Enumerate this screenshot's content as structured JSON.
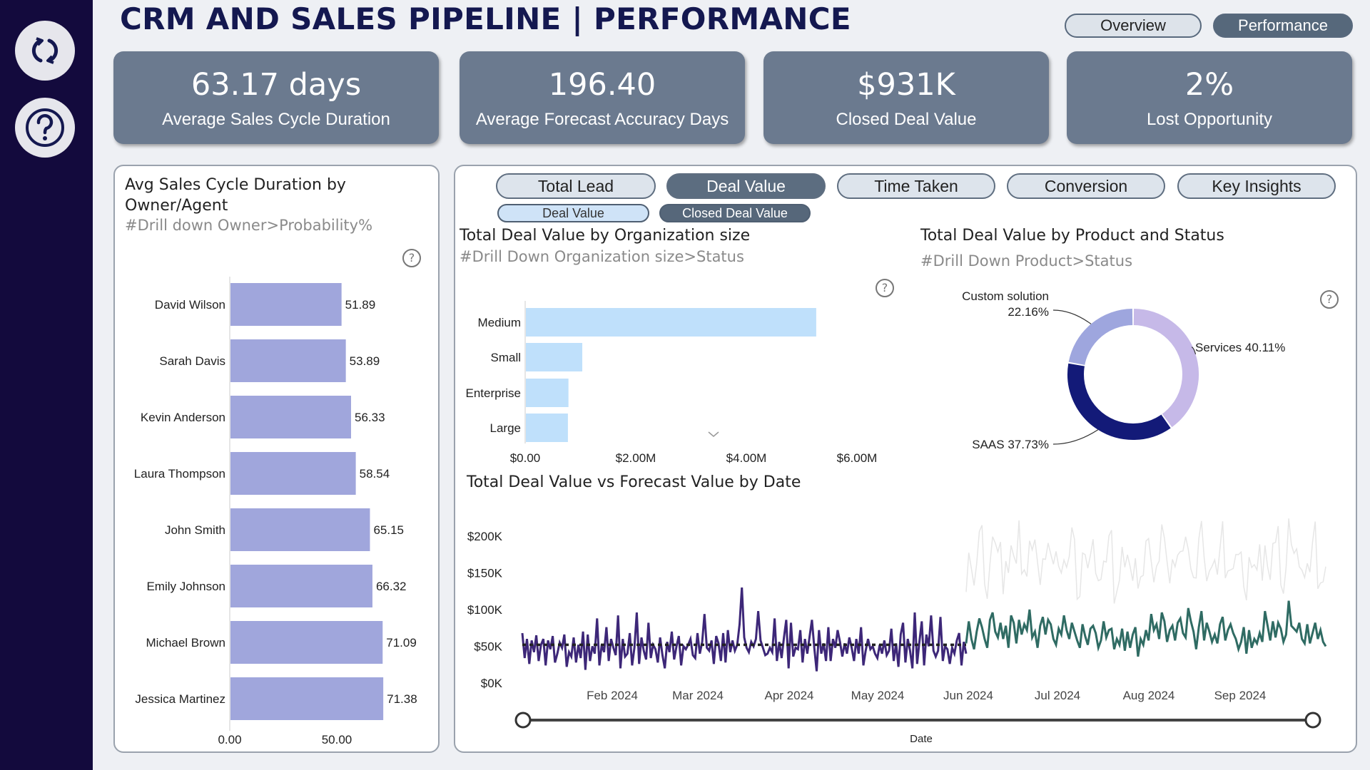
{
  "title": "CRM AND SALES PIPELINE | PERFORMANCE",
  "sidebar": {
    "buttons": [
      {
        "icon": "refresh-icon"
      },
      {
        "icon": "help-icon"
      }
    ]
  },
  "nav": {
    "overview_label": "Overview",
    "performance_label": "Performance",
    "active": "Performance"
  },
  "kpis": [
    {
      "value": "63.17 days",
      "label": "Average Sales Cycle Duration"
    },
    {
      "value": "196.40",
      "label": "Average Forecast Accuracy Days"
    },
    {
      "value": "$931K",
      "label": "Closed Deal Value"
    },
    {
      "value": "2%",
      "label": "Lost Opportunity"
    }
  ],
  "left_panel": {
    "title_line1": "Avg Sales Cycle Duration by",
    "title_line2": "Owner/Agent",
    "subtitle": "#Drill down Owner>Probability%",
    "help": "?"
  },
  "tabs": [
    {
      "label": "Total Lead",
      "active": false
    },
    {
      "label": "Deal Value",
      "active": true
    },
    {
      "label": "Time Taken",
      "active": false
    },
    {
      "label": "Conversion",
      "active": false
    },
    {
      "label": "Key Insights",
      "active": false
    }
  ],
  "subtabs": [
    {
      "label": "Deal Value",
      "active": false
    },
    {
      "label": "Closed Deal Value",
      "active": true
    }
  ],
  "org_panel": {
    "title": "Total Deal Value by Organization size",
    "subtitle": "#Drill Down Organization size>Status",
    "help": "?"
  },
  "product_panel": {
    "title": "Total Deal Value by Product and Status",
    "subtitle": "#Drill Down Product>Status",
    "help": "?"
  },
  "line_panel": {
    "title": "Total Deal Value vs Forecast Value by Date",
    "xlabel": "Date"
  },
  "colors": {
    "sidebar": "#130a3d",
    "kpi_card": "#6b7a8f",
    "owner_bar": "#a0a6dc",
    "org_bar": "#bfe0fb",
    "services": "#c6b9e8",
    "saas": "#131a78",
    "custom": "#9ea6de",
    "actual_line": "#3d2778",
    "forecast_line": "#2f6b63"
  },
  "chart_data": [
    {
      "type": "bar",
      "orientation": "horizontal",
      "categories": [
        "David Wilson",
        "Sarah Davis",
        "Kevin Anderson",
        "Laura Thompson",
        "John Smith",
        "Emily Johnson",
        "Michael Brown",
        "Jessica Martinez"
      ],
      "values": [
        51.89,
        53.89,
        56.33,
        58.54,
        65.15,
        66.32,
        71.09,
        71.38
      ],
      "value_labels": [
        "51.89",
        "53.89",
        "56.33",
        "58.54",
        "65.15",
        "66.32",
        "71.09",
        "71.38"
      ],
      "x_ticks": [
        "0.00",
        "50.00"
      ],
      "xlim": [
        0,
        80
      ]
    },
    {
      "type": "bar",
      "orientation": "horizontal",
      "categories": [
        "Medium",
        "Small",
        "Enterprise",
        "Large"
      ],
      "values": [
        5.25,
        1.02,
        0.77,
        0.76
      ],
      "unit": "$M",
      "x_ticks": [
        "$0.00",
        "$2.00M",
        "$4.00M",
        "$6.00M"
      ],
      "xlim": [
        0,
        6
      ]
    },
    {
      "type": "pie",
      "variant": "donut",
      "slices": [
        {
          "label": "Services 40.11%",
          "value": 40.11
        },
        {
          "label": "SAAS 37.73%",
          "value": 37.73
        },
        {
          "label_line1": "Custom solution",
          "label_line2": "22.16%",
          "value": 22.16
        }
      ]
    },
    {
      "type": "line",
      "y_ticks": [
        "$200K",
        "$150K",
        "$100K",
        "$50K",
        "$0K"
      ],
      "ylim": [
        0,
        200000
      ],
      "x_ticks": [
        "Feb 2024",
        "Mar 2024",
        "Apr 2024",
        "May 2024",
        "Jun 2024",
        "Jul 2024",
        "Aug 2024",
        "Sep 2024"
      ],
      "series": [
        {
          "values": [
            68000,
            34000,
            60000,
            26000,
            58000,
            42000,
            65000,
            30000,
            52000,
            60000,
            24000,
            58000,
            46000,
            64000,
            28000,
            40000,
            55000,
            48000,
            66000,
            22000,
            42000,
            36000,
            62000,
            28000,
            52000,
            34000,
            70000,
            18000,
            66000,
            30000,
            50000,
            40000,
            88000,
            24000,
            52000,
            42000,
            76000,
            30000,
            60000,
            48000,
            38000,
            92000,
            20000,
            60000,
            36000,
            40000,
            68000,
            24000,
            48000,
            96000,
            26000,
            62000,
            44000,
            32000,
            82000,
            34000,
            52000,
            46000,
            28000,
            62000,
            38000,
            20000,
            56000,
            42000,
            70000,
            32000,
            50000,
            64000,
            24000,
            50000,
            46000,
            52000,
            60000,
            38000,
            34000,
            68000,
            40000,
            56000,
            94000,
            48000,
            44000,
            58000,
            26000,
            64000,
            54000,
            30000,
            68000,
            28000,
            72000,
            42000,
            58000,
            44000,
            52000,
            80000,
            130000,
            62000,
            48000,
            42000,
            56000,
            50000,
            60000,
            98000,
            58000,
            48000,
            38000,
            40000,
            48000,
            42000,
            88000,
            30000,
            56000,
            34000,
            62000,
            86000,
            20000,
            82000,
            36000,
            48000,
            46000,
            72000,
            28000,
            60000,
            40000,
            64000,
            86000,
            48000,
            16000,
            72000,
            40000,
            54000,
            30000,
            76000,
            30000,
            60000,
            48000,
            72000,
            56000,
            36000,
            54000,
            40000,
            62000,
            48000,
            30000,
            60000,
            40000,
            76000,
            24000,
            44000,
            60000,
            46000,
            50000,
            40000,
            34000,
            52000,
            40000,
            58000,
            38000,
            44000,
            74000,
            30000,
            54000,
            22000,
            66000,
            82000,
            28000,
            60000,
            44000,
            20000,
            96000,
            26000,
            56000,
            84000,
            24000,
            66000,
            50000,
            92000,
            44000,
            36000,
            44000,
            90000,
            30000,
            50000,
            46000,
            26000,
            48000,
            40000,
            58000,
            68000,
            24000,
            56000,
            40000
          ],
          "period": "to Jun 2024"
        },
        {
          "values": [
            54000,
            84000,
            60000,
            46000,
            70000,
            88000,
            76000,
            60000,
            48000,
            86000,
            96000,
            70000,
            62000,
            82000,
            60000,
            78000,
            48000,
            92000,
            82000,
            54000,
            86000,
            66000,
            80000,
            72000,
            100000,
            62000,
            70000,
            48000,
            78000,
            90000,
            66000,
            86000,
            80000,
            60000,
            52000,
            74000,
            66000,
            92000,
            72000,
            60000,
            82000,
            70000,
            58000,
            48000,
            80000,
            64000,
            52000,
            74000,
            78000,
            68000,
            48000,
            58000,
            84000,
            62000,
            72000,
            74000,
            46000,
            60000,
            52000,
            74000,
            44000,
            70000,
            48000,
            66000,
            76000,
            36000,
            60000,
            52000,
            72000,
            58000,
            94000,
            72000,
            80000,
            60000,
            96000,
            84000,
            56000,
            72000,
            78000,
            58000,
            82000,
            88000,
            68000,
            62000,
            102000,
            84000,
            70000,
            46000,
            76000,
            98000,
            58000,
            82000,
            70000,
            56000,
            66000,
            54000,
            80000,
            90000,
            58000,
            72000,
            80000,
            68000,
            60000,
            46000,
            56000,
            76000,
            40000,
            72000,
            48000,
            60000,
            54000,
            68000,
            56000,
            98000,
            78000,
            58000,
            84000,
            62000,
            82000,
            74000,
            56000,
            66000,
            112000,
            78000,
            74000,
            70000,
            82000,
            60000,
            54000,
            80000,
            54000,
            68000,
            82000,
            60000,
            72000,
            56000,
            50000
          ],
          "period": "Jun 2024 onward"
        },
        {
          "values": [
            52000,
            52000,
            52000,
            52000,
            52000,
            52000,
            52000
          ],
          "style": "dotted"
        }
      ]
    }
  ]
}
